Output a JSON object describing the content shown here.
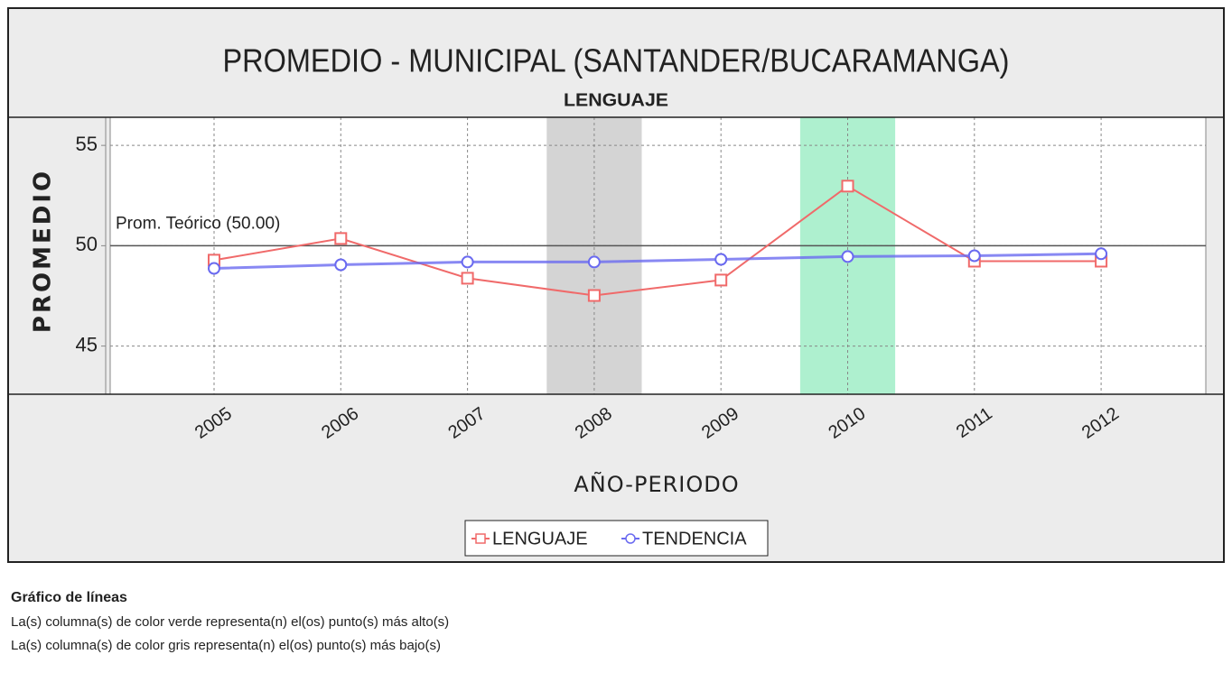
{
  "chart_data": {
    "type": "line",
    "title": "PROMEDIO - MUNICIPAL (SANTANDER/BUCARAMANGA)",
    "subtitle": "LENGUAJE",
    "y_label": "PROMEDIO",
    "x_label": "AÑO-PERIODO",
    "categories": [
      "2005",
      "2006",
      "2007",
      "2008",
      "2009",
      "2010",
      "2011",
      "2012"
    ],
    "series": [
      {
        "name": "LENGUAJE",
        "color": "#f06a6a",
        "values": [
          49.28,
          50.36,
          48.38,
          47.52,
          48.29,
          52.97,
          49.23,
          49.23
        ]
      },
      {
        "name": "TENDENCIA",
        "color": "#6a6af0",
        "values": [
          48.87,
          49.05,
          49.19,
          49.19,
          49.32,
          49.46,
          49.5,
          49.6
        ]
      }
    ],
    "ylim": [
      42.6,
      56.4
    ],
    "yticks": [
      45,
      50,
      55
    ],
    "grid": true,
    "reference_line": {
      "value": 50,
      "label": "Prom. Teórico (50.00)"
    },
    "highlights": [
      {
        "category": "2008",
        "color": "#d4d4d4"
      },
      {
        "category": "2010",
        "color": "#aef0cf"
      }
    ],
    "legend_position": "bottom",
    "notes": {
      "heading": "Gráfico de líneas",
      "lines": [
        "La(s) columna(s) de color verde representa(n) el(os) punto(s) más alto(s)",
        "La(s) columna(s) de color gris representa(n) el(os) punto(s) más bajo(s)"
      ]
    }
  }
}
